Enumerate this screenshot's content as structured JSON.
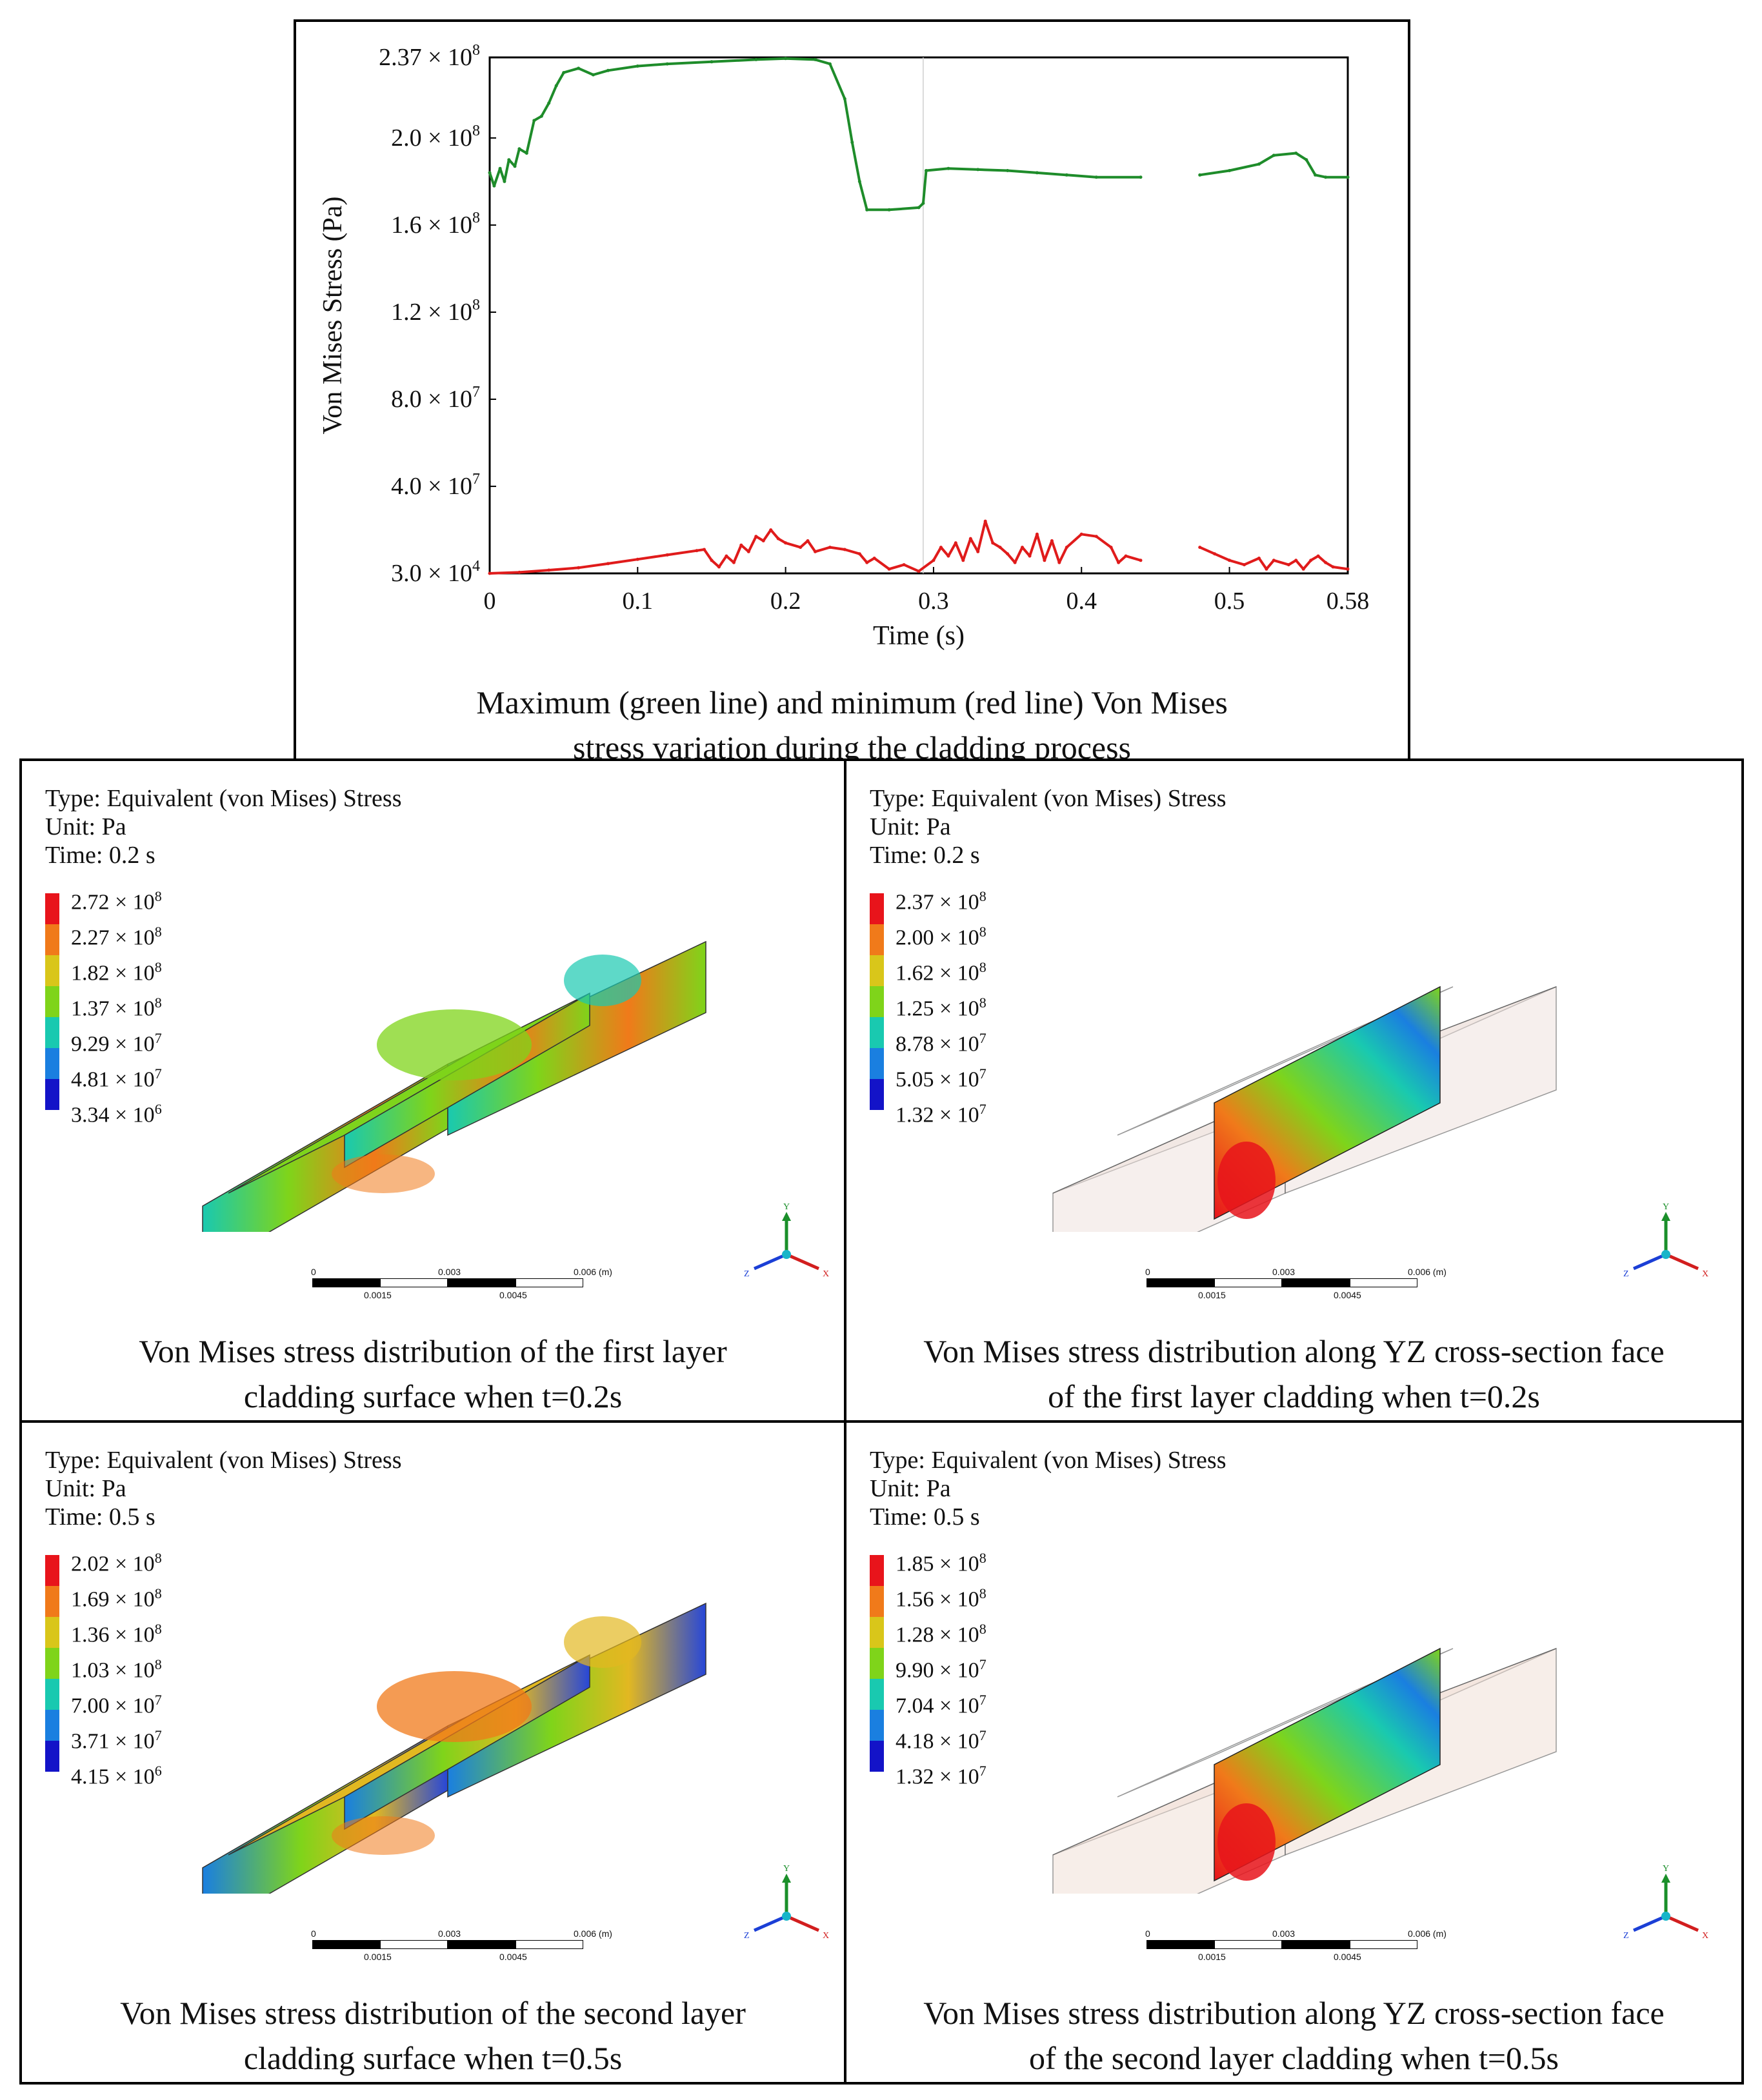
{
  "chart_data": {
    "type": "line",
    "title": "",
    "xlabel": "Time (s)",
    "ylabel": "Von Mises Stress (Pa)",
    "xlim": [
      0,
      0.58
    ],
    "ylim": [
      30000,
      237000000
    ],
    "x_ticks": [
      "0",
      "0.1",
      "0.2",
      "0.3",
      "0.4",
      "0.5",
      "0.58"
    ],
    "x_tick_values": [
      0,
      0.1,
      0.2,
      0.3,
      0.4,
      0.5,
      0.58
    ],
    "y_ticks": [
      {
        "mant": "3.0",
        "exp": "4",
        "value": 30000
      },
      {
        "mant": "4.0",
        "exp": "7",
        "value": 40000000
      },
      {
        "mant": "8.0",
        "exp": "7",
        "value": 80000000
      },
      {
        "mant": "1.2",
        "exp": "8",
        "value": 120000000
      },
      {
        "mant": "1.6",
        "exp": "8",
        "value": 160000000
      },
      {
        "mant": "2.0",
        "exp": "8",
        "value": 200000000
      },
      {
        "mant": "2.37",
        "exp": "8",
        "value": 237000000
      }
    ],
    "series": [
      {
        "name": "Maximum",
        "color": "#1e8c2a",
        "segments": [
          [
            [
              0,
              184000000.0
            ],
            [
              0.003,
              178000000.0
            ],
            [
              0.007,
              186000000.0
            ],
            [
              0.01,
              180000000.0
            ],
            [
              0.013,
              190000000.0
            ],
            [
              0.017,
              187000000.0
            ],
            [
              0.02,
              195000000.0
            ],
            [
              0.025,
              193000000.0
            ],
            [
              0.03,
              208000000.0
            ],
            [
              0.035,
              210000000.0
            ],
            [
              0.04,
              216000000.0
            ],
            [
              0.045,
              224000000.0
            ],
            [
              0.05,
              230000000.0
            ],
            [
              0.06,
              232000000.0
            ],
            [
              0.07,
              229000000.0
            ],
            [
              0.08,
              231000000.0
            ],
            [
              0.1,
              233000000.0
            ],
            [
              0.12,
              234000000.0
            ],
            [
              0.15,
              235000000.0
            ],
            [
              0.18,
              236000000.0
            ],
            [
              0.2,
              236500000.0
            ],
            [
              0.22,
              236000000.0
            ],
            [
              0.23,
              234000000.0
            ],
            [
              0.24,
              218000000.0
            ],
            [
              0.245,
              198000000.0
            ],
            [
              0.25,
              180000000.0
            ],
            [
              0.255,
              167000000.0
            ],
            [
              0.27,
              167000000.0
            ],
            [
              0.29,
              168000000.0
            ],
            [
              0.293,
              170000000.0
            ],
            [
              0.295,
              185000000.0
            ],
            [
              0.31,
              186000000.0
            ],
            [
              0.33,
              185500000.0
            ],
            [
              0.35,
              185000000.0
            ],
            [
              0.37,
              184000000.0
            ],
            [
              0.39,
              183000000.0
            ],
            [
              0.41,
              182000000.0
            ],
            [
              0.44,
              182000000.0
            ]
          ],
          [
            [
              0.48,
              183000000.0
            ],
            [
              0.5,
              185000000.0
            ],
            [
              0.52,
              188000000.0
            ],
            [
              0.53,
              192000000.0
            ],
            [
              0.545,
              193000000.0
            ],
            [
              0.552,
              190000000.0
            ],
            [
              0.558,
              183000000.0
            ],
            [
              0.565,
              182000000.0
            ],
            [
              0.58,
              182000000.0
            ]
          ]
        ]
      },
      {
        "name": "Minimum",
        "color": "#e01b1b",
        "segments": [
          [
            [
              0,
              30000.0
            ],
            [
              0.02,
              500000.0
            ],
            [
              0.04,
              1500000.0
            ],
            [
              0.06,
              2600000.0
            ],
            [
              0.08,
              4500000.0
            ],
            [
              0.1,
              6500000.0
            ],
            [
              0.12,
              8500000.0
            ],
            [
              0.14,
              10500000.0
            ],
            [
              0.145,
              11000000.0
            ],
            [
              0.15,
              6000000.0
            ],
            [
              0.155,
              3000000.0
            ],
            [
              0.16,
              8000000.0
            ],
            [
              0.165,
              5000000.0
            ],
            [
              0.17,
              13000000.0
            ],
            [
              0.175,
              10000000.0
            ],
            [
              0.18,
              17000000.0
            ],
            [
              0.185,
              15000000.0
            ],
            [
              0.19,
              20000000.0
            ],
            [
              0.195,
              16000000.0
            ],
            [
              0.2,
              14000000.0
            ],
            [
              0.21,
              12000000.0
            ],
            [
              0.215,
              15000000.0
            ],
            [
              0.22,
              10000000.0
            ],
            [
              0.23,
              12000000.0
            ],
            [
              0.24,
              11000000.0
            ],
            [
              0.25,
              9000000.0
            ],
            [
              0.255,
              5000000.0
            ],
            [
              0.26,
              7000000.0
            ],
            [
              0.27,
              2000000.0
            ],
            [
              0.28,
              4000000.0
            ],
            [
              0.29,
              1000000.0
            ],
            [
              0.3,
              6000000.0
            ],
            [
              0.305,
              12000000.0
            ],
            [
              0.31,
              8000000.0
            ],
            [
              0.315,
              14000000.0
            ],
            [
              0.32,
              6000000.0
            ],
            [
              0.325,
              16000000.0
            ],
            [
              0.33,
              10000000.0
            ],
            [
              0.335,
              24000000.0
            ],
            [
              0.34,
              14000000.0
            ],
            [
              0.345,
              12000000.0
            ],
            [
              0.35,
              9000000.0
            ],
            [
              0.355,
              5000000.0
            ],
            [
              0.36,
              12000000.0
            ],
            [
              0.365,
              8000000.0
            ],
            [
              0.37,
              18000000.0
            ],
            [
              0.375,
              6000000.0
            ],
            [
              0.38,
              15000000.0
            ],
            [
              0.385,
              5000000.0
            ],
            [
              0.39,
              12000000.0
            ],
            [
              0.4,
              18000000.0
            ],
            [
              0.41,
              17000000.0
            ],
            [
              0.42,
              12000000.0
            ],
            [
              0.425,
              5000000.0
            ],
            [
              0.43,
              8000000.0
            ],
            [
              0.44,
              6000000.0
            ]
          ],
          [
            [
              0.48,
              12000000.0
            ],
            [
              0.49,
              9000000.0
            ],
            [
              0.5,
              6000000.0
            ],
            [
              0.51,
              4000000.0
            ],
            [
              0.52,
              7000000.0
            ],
            [
              0.525,
              2000000.0
            ],
            [
              0.53,
              6000000.0
            ],
            [
              0.54,
              4000000.0
            ],
            [
              0.545,
              6000000.0
            ],
            [
              0.55,
              2000000.0
            ],
            [
              0.555,
              6000000.0
            ],
            [
              0.56,
              8000000.0
            ],
            [
              0.565,
              5000000.0
            ],
            [
              0.57,
              3000000.0
            ],
            [
              0.58,
              2000000.0
            ]
          ]
        ]
      }
    ]
  },
  "top_panel": {
    "caption_line1": "Maximum (green line) and minimum (red line) Von Mises",
    "caption_line2": "stress variation during the cladding process"
  },
  "panels": [
    {
      "type": "Type: Equivalent (von Mises) Stress",
      "unit": "Unit: Pa",
      "time": "Time: 0.2 s",
      "legend": [
        {
          "m": "2.72",
          "e": "8"
        },
        {
          "m": "2.27",
          "e": "8"
        },
        {
          "m": "1.82",
          "e": "8"
        },
        {
          "m": "1.37",
          "e": "8"
        },
        {
          "m": "9.29",
          "e": "7"
        },
        {
          "m": "4.81",
          "e": "7"
        },
        {
          "m": "3.34",
          "e": "6"
        }
      ],
      "caption_line1": "Von Mises stress distribution of the first layer",
      "caption_line2": "cladding surface when t=0.2s"
    },
    {
      "type": "Type: Equivalent (von Mises) Stress",
      "unit": "Unit: Pa",
      "time": "Time: 0.2 s",
      "legend": [
        {
          "m": "2.37",
          "e": "8"
        },
        {
          "m": "2.00",
          "e": "8"
        },
        {
          "m": "1.62",
          "e": "8"
        },
        {
          "m": "1.25",
          "e": "8"
        },
        {
          "m": "8.78",
          "e": "7"
        },
        {
          "m": "5.05",
          "e": "7"
        },
        {
          "m": "1.32",
          "e": "7"
        }
      ],
      "caption_line1": "Von Mises stress distribution along YZ cross-section face",
      "caption_line2": "of the first layer cladding when t=0.2s"
    },
    {
      "type": "Type: Equivalent (von Mises) Stress",
      "unit": "Unit: Pa",
      "time": "Time: 0.5 s",
      "legend": [
        {
          "m": "2.02",
          "e": "8"
        },
        {
          "m": "1.69",
          "e": "8"
        },
        {
          "m": "1.36",
          "e": "8"
        },
        {
          "m": "1.03",
          "e": "8"
        },
        {
          "m": "7.00",
          "e": "7"
        },
        {
          "m": "3.71",
          "e": "7"
        },
        {
          "m": "4.15",
          "e": "6"
        }
      ],
      "caption_line1": "Von Mises stress distribution of the second layer",
      "caption_line2": "cladding surface when t=0.5s"
    },
    {
      "type": "Type: Equivalent (von Mises) Stress",
      "unit": "Unit: Pa",
      "time": "Time: 0.5 s",
      "legend": [
        {
          "m": "1.85",
          "e": "8"
        },
        {
          "m": "1.56",
          "e": "8"
        },
        {
          "m": "1.28",
          "e": "8"
        },
        {
          "m": "9.90",
          "e": "7"
        },
        {
          "m": "7.04",
          "e": "7"
        },
        {
          "m": "4.18",
          "e": "7"
        },
        {
          "m": "1.32",
          "e": "7"
        }
      ],
      "caption_line1": "Von Mises stress distribution along YZ cross-section face",
      "caption_line2": "of the second layer cladding when t=0.5s"
    }
  ],
  "legend_colors": [
    "#e8141b",
    "#f07a1a",
    "#d9c61a",
    "#7fd41a",
    "#19c9b0",
    "#1a7fe0",
    "#1313c8"
  ],
  "scale": {
    "t0": "0",
    "t1": "0.003",
    "t2": "0.006 (m)",
    "b1": "0.0015",
    "b2": "0.0045"
  },
  "axis_labels": {
    "y": "Y",
    "x": "X",
    "z": "Z"
  }
}
